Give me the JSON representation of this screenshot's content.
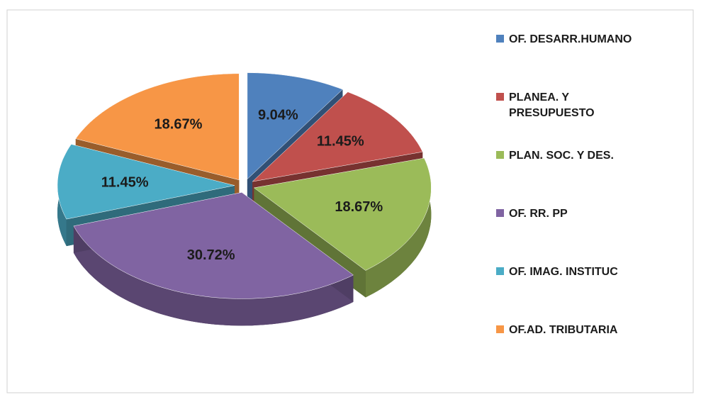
{
  "chart_data": {
    "type": "pie",
    "categories": [
      "OF. DESARR.HUMANO",
      "PLANEA. Y PRESUPUESTO",
      "PLAN. SOC. Y DES.",
      "OF. RR. PP",
      "OF. IMAG. INSTITUC",
      "OF.AD. TRIBUTARIA"
    ],
    "values": [
      9.04,
      11.45,
      18.67,
      30.72,
      11.45,
      18.67
    ],
    "value_labels": [
      "9.04%",
      "11.45%",
      "18.67%",
      "30.72%",
      "11.45%",
      "18.67%"
    ],
    "colors": [
      "#4f81bd",
      "#c0504d",
      "#9bbb59",
      "#8064a2",
      "#4bacc6",
      "#f79646"
    ],
    "legend": "right"
  }
}
